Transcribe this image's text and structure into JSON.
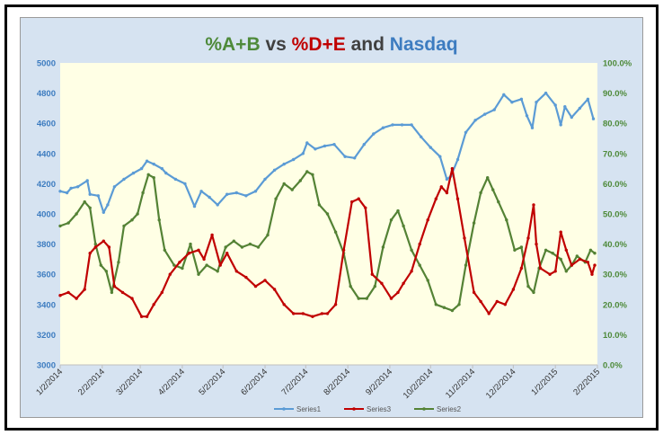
{
  "colors": {
    "series1": "#5b9bd5",
    "series3": "#c00000",
    "series2": "#548235",
    "plot_bg": "#ffffe5",
    "chart_bg": "#d6e3f1",
    "title_green": "#4e8a3a",
    "title_red": "#c00000",
    "title_blue": "#3d7cc0",
    "title_dark": "#404040"
  },
  "title_parts": [
    {
      "text": "%A+B",
      "color": "green"
    },
    {
      "text": " vs ",
      "color": "dark"
    },
    {
      "text": "%D+E",
      "color": "red"
    },
    {
      "text": " and ",
      "color": "dark"
    },
    {
      "text": "Nasdaq",
      "color": "blue"
    }
  ],
  "chart_data": {
    "type": "line",
    "title": "%A+B vs %D+E and Nasdaq",
    "x_tick_labels": [
      "1/2/2014",
      "2/2/2014",
      "3/2/2014",
      "4/2/2014",
      "5/2/2014",
      "6/2/2014",
      "7/2/2014",
      "8/2/2014",
      "9/2/2014",
      "10/2/2014",
      "11/2/2014",
      "12/2/2014",
      "1/2/2015",
      "2/2/2015"
    ],
    "y_left": {
      "min": 3000,
      "max": 5000,
      "step": 200,
      "tick_labels": [
        "3000",
        "3200",
        "3400",
        "3600",
        "3800",
        "4000",
        "4200",
        "4400",
        "4600",
        "4800",
        "5000"
      ]
    },
    "y_right": {
      "min": 0,
      "max": 100,
      "step": 10,
      "tick_labels": [
        "0.0%",
        "10.0%",
        "20.0%",
        "30.0%",
        "40.0%",
        "50.0%",
        "60.0%",
        "70.0%",
        "80.0%",
        "90.0%",
        "100.0%"
      ]
    },
    "legend": {
      "position": "bottom",
      "entries": [
        "Series1",
        "Series3",
        "Series2"
      ]
    },
    "series": [
      {
        "name": "Series1",
        "axis": "left",
        "color": "series1",
        "points": [
          [
            "2014-01-02",
            4150
          ],
          [
            "2014-01-07",
            4140
          ],
          [
            "2014-01-10",
            4170
          ],
          [
            "2014-01-15",
            4180
          ],
          [
            "2014-01-22",
            4220
          ],
          [
            "2014-01-24",
            4130
          ],
          [
            "2014-01-30",
            4120
          ],
          [
            "2014-02-03",
            4010
          ],
          [
            "2014-02-06",
            4060
          ],
          [
            "2014-02-11",
            4180
          ],
          [
            "2014-02-18",
            4230
          ],
          [
            "2014-02-25",
            4270
          ],
          [
            "2014-03-03",
            4300
          ],
          [
            "2014-03-07",
            4350
          ],
          [
            "2014-03-12",
            4330
          ],
          [
            "2014-03-18",
            4300
          ],
          [
            "2014-03-21",
            4270
          ],
          [
            "2014-03-28",
            4230
          ],
          [
            "2014-04-04",
            4200
          ],
          [
            "2014-04-11",
            4050
          ],
          [
            "2014-04-16",
            4150
          ],
          [
            "2014-04-22",
            4110
          ],
          [
            "2014-04-28",
            4060
          ],
          [
            "2014-05-05",
            4130
          ],
          [
            "2014-05-12",
            4140
          ],
          [
            "2014-05-19",
            4120
          ],
          [
            "2014-05-26",
            4150
          ],
          [
            "2014-06-02",
            4230
          ],
          [
            "2014-06-09",
            4290
          ],
          [
            "2014-06-16",
            4330
          ],
          [
            "2014-06-23",
            4360
          ],
          [
            "2014-06-30",
            4400
          ],
          [
            "2014-07-03",
            4470
          ],
          [
            "2014-07-09",
            4430
          ],
          [
            "2014-07-16",
            4450
          ],
          [
            "2014-07-23",
            4460
          ],
          [
            "2014-07-31",
            4380
          ],
          [
            "2014-08-07",
            4370
          ],
          [
            "2014-08-14",
            4460
          ],
          [
            "2014-08-21",
            4530
          ],
          [
            "2014-08-28",
            4570
          ],
          [
            "2014-09-04",
            4590
          ],
          [
            "2014-09-11",
            4590
          ],
          [
            "2014-09-18",
            4590
          ],
          [
            "2014-09-25",
            4510
          ],
          [
            "2014-10-02",
            4440
          ],
          [
            "2014-10-09",
            4380
          ],
          [
            "2014-10-14",
            4230
          ],
          [
            "2014-10-17",
            4250
          ],
          [
            "2014-10-22",
            4360
          ],
          [
            "2014-10-28",
            4540
          ],
          [
            "2014-11-04",
            4620
          ],
          [
            "2014-11-11",
            4660
          ],
          [
            "2014-11-18",
            4690
          ],
          [
            "2014-11-25",
            4790
          ],
          [
            "2014-12-01",
            4740
          ],
          [
            "2014-12-08",
            4760
          ],
          [
            "2014-12-12",
            4650
          ],
          [
            "2014-12-16",
            4570
          ],
          [
            "2014-12-19",
            4740
          ],
          [
            "2014-12-26",
            4800
          ],
          [
            "2015-01-02",
            4720
          ],
          [
            "2015-01-06",
            4590
          ],
          [
            "2015-01-09",
            4710
          ],
          [
            "2015-01-14",
            4640
          ],
          [
            "2015-01-20",
            4700
          ],
          [
            "2015-01-26",
            4760
          ],
          [
            "2015-01-30",
            4630
          ]
        ]
      },
      {
        "name": "Series3",
        "axis": "right",
        "color": "series3",
        "points": [
          [
            "2014-01-02",
            23
          ],
          [
            "2014-01-08",
            24
          ],
          [
            "2014-01-14",
            22
          ],
          [
            "2014-01-20",
            25
          ],
          [
            "2014-01-24",
            37
          ],
          [
            "2014-01-28",
            39
          ],
          [
            "2014-02-03",
            41
          ],
          [
            "2014-02-07",
            39
          ],
          [
            "2014-02-11",
            26
          ],
          [
            "2014-02-17",
            24
          ],
          [
            "2014-02-24",
            22
          ],
          [
            "2014-03-03",
            16
          ],
          [
            "2014-03-07",
            16
          ],
          [
            "2014-03-12",
            20
          ],
          [
            "2014-03-18",
            24
          ],
          [
            "2014-03-24",
            30
          ],
          [
            "2014-03-31",
            34
          ],
          [
            "2014-04-07",
            37
          ],
          [
            "2014-04-14",
            38
          ],
          [
            "2014-04-18",
            35
          ],
          [
            "2014-04-24",
            43
          ],
          [
            "2014-04-30",
            33
          ],
          [
            "2014-05-05",
            37
          ],
          [
            "2014-05-12",
            31
          ],
          [
            "2014-05-19",
            29
          ],
          [
            "2014-05-26",
            26
          ],
          [
            "2014-06-02",
            28
          ],
          [
            "2014-06-09",
            25
          ],
          [
            "2014-06-16",
            20
          ],
          [
            "2014-06-23",
            17
          ],
          [
            "2014-06-30",
            17
          ],
          [
            "2014-07-07",
            16
          ],
          [
            "2014-07-14",
            17
          ],
          [
            "2014-07-18",
            17
          ],
          [
            "2014-07-24",
            20
          ],
          [
            "2014-07-30",
            38
          ],
          [
            "2014-08-05",
            54
          ],
          [
            "2014-08-10",
            55
          ],
          [
            "2014-08-15",
            52
          ],
          [
            "2014-08-20",
            30
          ],
          [
            "2014-08-27",
            27
          ],
          [
            "2014-09-03",
            22
          ],
          [
            "2014-09-08",
            24
          ],
          [
            "2014-09-12",
            27
          ],
          [
            "2014-09-18",
            31
          ],
          [
            "2014-09-24",
            40
          ],
          [
            "2014-09-30",
            48
          ],
          [
            "2014-10-06",
            55
          ],
          [
            "2014-10-10",
            59
          ],
          [
            "2014-10-14",
            57
          ],
          [
            "2014-10-18",
            65
          ],
          [
            "2014-10-22",
            55
          ],
          [
            "2014-10-27",
            42
          ],
          [
            "2014-11-03",
            24
          ],
          [
            "2014-11-08",
            21
          ],
          [
            "2014-11-14",
            17
          ],
          [
            "2014-11-20",
            21
          ],
          [
            "2014-11-26",
            20
          ],
          [
            "2014-12-02",
            25
          ],
          [
            "2014-12-08",
            32
          ],
          [
            "2014-12-13",
            42
          ],
          [
            "2014-12-17",
            53
          ],
          [
            "2014-12-19",
            40
          ],
          [
            "2014-12-22",
            32
          ],
          [
            "2014-12-29",
            30
          ],
          [
            "2015-01-02",
            31
          ],
          [
            "2015-01-06",
            44
          ],
          [
            "2015-01-10",
            38
          ],
          [
            "2015-01-14",
            33
          ],
          [
            "2015-01-20",
            35
          ],
          [
            "2015-01-26",
            34
          ],
          [
            "2015-01-29",
            30
          ],
          [
            "2015-01-31",
            33
          ]
        ]
      },
      {
        "name": "Series2",
        "axis": "right",
        "color": "series2",
        "points": [
          [
            "2014-01-02",
            46
          ],
          [
            "2014-01-08",
            47
          ],
          [
            "2014-01-14",
            50
          ],
          [
            "2014-01-20",
            54
          ],
          [
            "2014-01-24",
            52
          ],
          [
            "2014-01-28",
            40
          ],
          [
            "2014-02-01",
            33
          ],
          [
            "2014-02-05",
            31
          ],
          [
            "2014-02-09",
            24
          ],
          [
            "2014-02-14",
            34
          ],
          [
            "2014-02-18",
            46
          ],
          [
            "2014-02-24",
            48
          ],
          [
            "2014-02-28",
            50
          ],
          [
            "2014-03-04",
            57
          ],
          [
            "2014-03-08",
            63
          ],
          [
            "2014-03-12",
            62
          ],
          [
            "2014-03-16",
            48
          ],
          [
            "2014-03-20",
            38
          ],
          [
            "2014-03-27",
            33
          ],
          [
            "2014-04-02",
            32
          ],
          [
            "2014-04-08",
            40
          ],
          [
            "2014-04-14",
            30
          ],
          [
            "2014-04-20",
            33
          ],
          [
            "2014-04-28",
            31
          ],
          [
            "2014-05-04",
            39
          ],
          [
            "2014-05-10",
            41
          ],
          [
            "2014-05-16",
            39
          ],
          [
            "2014-05-22",
            40
          ],
          [
            "2014-05-28",
            39
          ],
          [
            "2014-06-04",
            43
          ],
          [
            "2014-06-10",
            55
          ],
          [
            "2014-06-16",
            60
          ],
          [
            "2014-06-22",
            58
          ],
          [
            "2014-06-28",
            61
          ],
          [
            "2014-07-03",
            64
          ],
          [
            "2014-07-07",
            63
          ],
          [
            "2014-07-12",
            53
          ],
          [
            "2014-07-18",
            50
          ],
          [
            "2014-07-24",
            44
          ],
          [
            "2014-07-30",
            37
          ],
          [
            "2014-08-04",
            26
          ],
          [
            "2014-08-10",
            22
          ],
          [
            "2014-08-16",
            22
          ],
          [
            "2014-08-22",
            26
          ],
          [
            "2014-08-28",
            39
          ],
          [
            "2014-09-03",
            48
          ],
          [
            "2014-09-08",
            51
          ],
          [
            "2014-09-12",
            46
          ],
          [
            "2014-09-18",
            38
          ],
          [
            "2014-09-24",
            33
          ],
          [
            "2014-09-30",
            28
          ],
          [
            "2014-10-06",
            20
          ],
          [
            "2014-10-12",
            19
          ],
          [
            "2014-10-18",
            18
          ],
          [
            "2014-10-23",
            20
          ],
          [
            "2014-10-28",
            33
          ],
          [
            "2014-11-03",
            47
          ],
          [
            "2014-11-08",
            57
          ],
          [
            "2014-11-13",
            62
          ],
          [
            "2014-11-17",
            58
          ],
          [
            "2014-11-21",
            54
          ],
          [
            "2014-11-27",
            48
          ],
          [
            "2014-12-03",
            38
          ],
          [
            "2014-12-08",
            39
          ],
          [
            "2014-12-13",
            26
          ],
          [
            "2014-12-17",
            24
          ],
          [
            "2014-12-21",
            32
          ],
          [
            "2014-12-26",
            38
          ],
          [
            "2014-12-31",
            37
          ],
          [
            "2015-01-06",
            35
          ],
          [
            "2015-01-10",
            31
          ],
          [
            "2015-01-14",
            33
          ],
          [
            "2015-01-18",
            36
          ],
          [
            "2015-01-24",
            34
          ],
          [
            "2015-01-28",
            38
          ],
          [
            "2015-01-31",
            37
          ]
        ]
      }
    ]
  }
}
